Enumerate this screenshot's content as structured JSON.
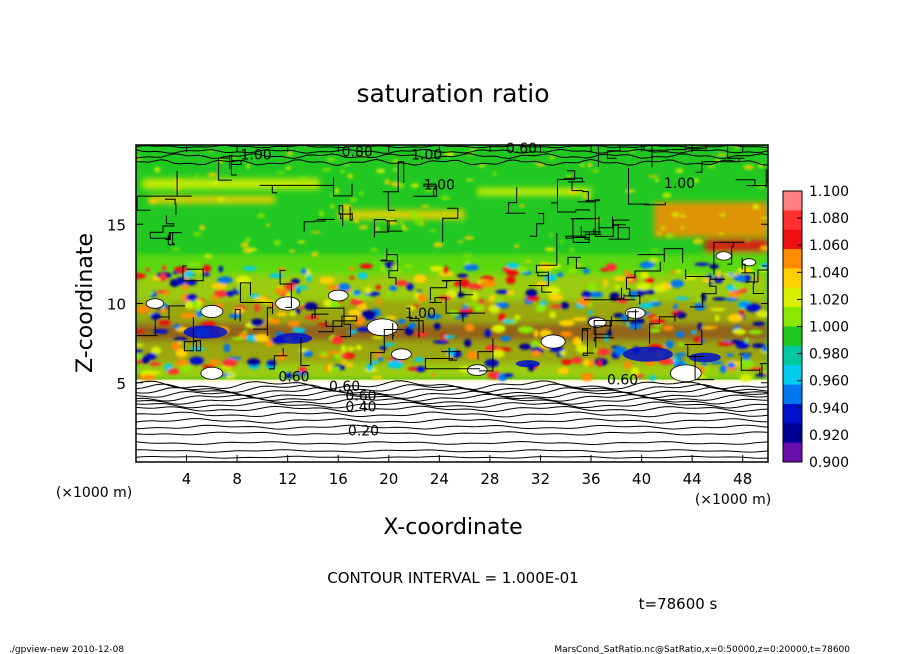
{
  "chart_data": {
    "type": "heatmap",
    "title": "saturation ratio",
    "xlabel": "X-coordinate",
    "ylabel": "Z-coordinate",
    "x_unit": "(×1000 m)",
    "z_unit": "(×1000 m)",
    "xlim": [
      0,
      50
    ],
    "ylim": [
      0,
      20
    ],
    "x_ticks": [
      4,
      8,
      12,
      16,
      20,
      24,
      28,
      32,
      36,
      40,
      44,
      48
    ],
    "y_ticks": [
      5,
      10,
      15
    ],
    "colorbar": {
      "labels": [
        "1.100",
        "1.080",
        "1.060",
        "1.040",
        "1.020",
        "1.000",
        "0.980",
        "0.960",
        "0.940",
        "0.920",
        "0.900"
      ],
      "values": [
        1.1,
        1.08,
        1.06,
        1.04,
        1.02,
        1.0,
        0.98,
        0.96,
        0.94,
        0.92,
        0.9
      ],
      "colors": [
        "#ff8080",
        "#ff3030",
        "#ee1010",
        "#ff8c00",
        "#ffd000",
        "#d8f000",
        "#88e800",
        "#22c822",
        "#00c8a0",
        "#00ccee",
        "#0077ee",
        "#0011cc",
        "#000099",
        "#6a0dad"
      ]
    },
    "contour_labels": [
      {
        "text": "0.20",
        "x": 18.0,
        "y": 2.0
      },
      {
        "text": "0.40",
        "x": 17.8,
        "y": 3.5
      },
      {
        "text": "0.60",
        "x": 17.8,
        "y": 4.2
      },
      {
        "text": "0.60",
        "x": 16.5,
        "y": 4.8
      },
      {
        "text": "0.60",
        "x": 12.5,
        "y": 5.4
      },
      {
        "text": "0.60",
        "x": 38.5,
        "y": 5.2
      },
      {
        "text": "1.00",
        "x": 24.0,
        "y": 17.5
      },
      {
        "text": "1.00",
        "x": 43.0,
        "y": 17.6
      },
      {
        "text": "1.00",
        "x": 22.5,
        "y": 9.4
      },
      {
        "text": "1.00",
        "x": 9.5,
        "y": 19.4
      },
      {
        "text": "0.80",
        "x": 17.5,
        "y": 19.6
      },
      {
        "text": "1.00",
        "x": 23.0,
        "y": 19.4
      },
      {
        "text": "0.60",
        "x": 30.5,
        "y": 19.8
      }
    ],
    "annotation": "CONTOUR INTERVAL = 1.000E-01",
    "time_label": "t=78600 s"
  },
  "footer": {
    "left": "./gpview-new   2010-12-08",
    "right": "MarsCond_SatRatio.nc@SatRatio,x=0:50000,z=0:20000,t=78600"
  }
}
